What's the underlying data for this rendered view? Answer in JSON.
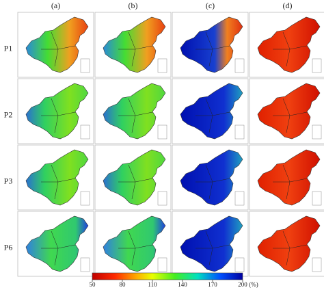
{
  "columns": [
    "(a)",
    "(b)",
    "(c)",
    "(d)"
  ],
  "rows": [
    "P1",
    "P2",
    "P3",
    "P6"
  ],
  "colorbar": {
    "lim": [
      50,
      200
    ],
    "ticks": [
      50,
      80,
      110,
      140,
      170,
      200
    ],
    "unit": "(%)"
  }
}
